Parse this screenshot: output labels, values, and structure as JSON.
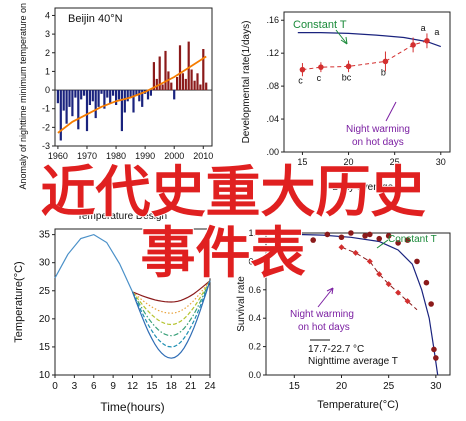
{
  "chart_data": [
    {
      "type": "bar",
      "panel": "a",
      "annotation": "Beijin 40°N",
      "ylabel": "Anomaly of nighttime minimum temperature on hot days",
      "xticks": [
        "1960",
        "1970",
        "1980",
        "1990",
        "2000",
        "2010"
      ],
      "yticks": [
        "4",
        "3",
        "2",
        "1",
        "0",
        "-1",
        "-2",
        "-3"
      ],
      "ylim": [
        -3,
        4.4
      ],
      "xlim": [
        1959,
        2013
      ],
      "bar_years": [
        1960,
        1961,
        1962,
        1963,
        1964,
        1965,
        1966,
        1967,
        1968,
        1969,
        1970,
        1971,
        1972,
        1973,
        1974,
        1975,
        1976,
        1977,
        1978,
        1979,
        1980,
        1981,
        1982,
        1983,
        1984,
        1985,
        1986,
        1987,
        1988,
        1989,
        1990,
        1991,
        1992,
        1993,
        1994,
        1995,
        1996,
        1997,
        1998,
        1999,
        2000,
        2001,
        2002,
        2003,
        2004,
        2005,
        2006,
        2007,
        2008,
        2009,
        2010,
        2011
      ],
      "values": [
        -0.7,
        -2.7,
        -1.1,
        -1.8,
        -0.9,
        -1.4,
        -0.4,
        -2.1,
        -0.5,
        -0.3,
        -2.2,
        -0.8,
        -0.6,
        -1.5,
        -0.9,
        -0.2,
        -1.0,
        -0.4,
        -0.7,
        -0.3,
        -0.8,
        -0.5,
        -2.2,
        -1.2,
        -0.6,
        -0.4,
        -1.2,
        -0.3,
        -0.6,
        -0.9,
        -0.2,
        -0.5,
        -0.3,
        1.5,
        0.6,
        1.8,
        0.3,
        2.1,
        1.0,
        0.4,
        -0.5,
        0.7,
        2.4,
        0.9,
        0.6,
        2.6,
        1.1,
        0.5,
        0.9,
        0.3,
        2.2,
        0.4
      ],
      "trend": {
        "x": [
          1960,
          1965,
          1970,
          1975,
          1980,
          1985,
          1990,
          1995,
          2000,
          2005,
          2011
        ],
        "y": [
          -2.3,
          -1.7,
          -1.3,
          -0.9,
          -0.6,
          -0.4,
          -0.1,
          0.3,
          0.7,
          1.2,
          1.8
        ]
      },
      "colors": {
        "positive": "#8b1a1a",
        "negative": "#1a237e",
        "trend": "#f57c00"
      }
    },
    {
      "type": "line",
      "panel": "b",
      "ylabel": "Developmental rate(1/days)",
      "xlabel": "Daily average T",
      "xticks": [
        "15",
        "20",
        "25",
        "30"
      ],
      "yticks": [
        ".16",
        ".12",
        ".08",
        ".04",
        ".00"
      ],
      "ylim": [
        0,
        0.17
      ],
      "xlim": [
        13,
        31
      ],
      "series": [
        {
          "name": "Constant T",
          "x": [
            14.5,
            17,
            20,
            23,
            26,
            28.5,
            30
          ],
          "y": [
            0.145,
            0.145,
            0.144,
            0.142,
            0.139,
            0.134,
            0.128
          ],
          "color": "#1a237e"
        },
        {
          "name": "Night warming on hot days",
          "x": [
            15,
            17,
            20,
            24,
            27,
            28.5
          ],
          "y": [
            0.1,
            0.103,
            0.104,
            0.11,
            0.13,
            0.135
          ],
          "err": [
            0.008,
            0.006,
            0.007,
            0.012,
            0.009,
            0.009
          ],
          "color": "#d32f2f"
        }
      ],
      "point_labels": [
        "c",
        "c",
        "bc",
        "b",
        "a",
        "a"
      ]
    },
    {
      "type": "line",
      "panel": "c",
      "title": "Temperature Design",
      "ylabel": "Temperature(°C)",
      "xlabel": "Time(hours)",
      "xticks": [
        "0",
        "3",
        "6",
        "9",
        "12",
        "15",
        "18",
        "21",
        "24"
      ],
      "yticks": [
        "35",
        "30",
        "25",
        "20",
        "15",
        "10"
      ],
      "xlim": [
        0,
        24
      ],
      "ylim": [
        10,
        36
      ],
      "day_curve": {
        "x": [
          0,
          2,
          4,
          6,
          8,
          10,
          12
        ],
        "y": [
          27.3,
          31.5,
          34.3,
          35,
          33.6,
          29.8,
          24.8
        ]
      },
      "night_curves": [
        {
          "min": 23.0,
          "color": "#8b1a1a",
          "style": "solid"
        },
        {
          "min": 21.0,
          "color": "#e8a33d",
          "style": "dotted"
        },
        {
          "min": 19.0,
          "color": "#b5c430",
          "style": "dashed"
        },
        {
          "min": 17.0,
          "color": "#3aa17a",
          "style": "dashdot"
        },
        {
          "min": 15.0,
          "color": "#1e8fb3",
          "style": "dashed"
        },
        {
          "min": 13.0,
          "color": "#2f6db5",
          "style": "solid"
        }
      ],
      "night_end": 26.8
    },
    {
      "type": "scatter",
      "panel": "d",
      "ylabel": "Survival rate",
      "xlabel": "Temperature(°C)",
      "xticks": [
        "15",
        "20",
        "25",
        "30"
      ],
      "yticks": [
        "1.0",
        "0.8",
        "0.6",
        "0.4",
        "0.2",
        "0.0"
      ],
      "xlim": [
        12,
        31.5
      ],
      "ylim": [
        0,
        1.0
      ],
      "series": [
        {
          "name": "Constant T",
          "x": [
            17,
            18.5,
            20,
            21,
            22.5,
            23,
            24,
            25,
            26,
            27,
            28,
            29,
            29.5,
            29.8,
            30
          ],
          "y": [
            0.95,
            0.99,
            0.97,
            1.0,
            0.98,
            0.99,
            0.96,
            0.98,
            0.93,
            0.95,
            0.8,
            0.65,
            0.5,
            0.18,
            0.12
          ],
          "color": "#8b1a1a"
        },
        {
          "name": "Night warming on hot days",
          "x": [
            20,
            21.5,
            23,
            24,
            25,
            26,
            27
          ],
          "y": [
            0.9,
            0.86,
            0.8,
            0.71,
            0.64,
            0.58,
            0.52
          ],
          "color": "#d32f2f"
        }
      ],
      "fit": {
        "x": [
          12,
          15,
          18,
          21,
          24,
          26,
          27.5,
          28.5,
          29.3,
          29.8,
          30.2
        ],
        "y": [
          0.99,
          0.99,
          0.985,
          0.97,
          0.94,
          0.88,
          0.78,
          0.6,
          0.4,
          0.18,
          0.0
        ],
        "color": "#1a237e"
      },
      "annotations": [
        "17.7-22.7 °C",
        "Nighttime average T"
      ]
    }
  ],
  "overlay": {
    "line1": "近代史重大历史",
    "line2": "事件表"
  },
  "labels": {
    "constant_t": "Constant T",
    "night_warming_1": "Night warming",
    "night_warming_2": "on hot days",
    "beijin": "Beijin 40°N",
    "temp_design": "Temperature Design",
    "range_note": "17.7-22.7 °C",
    "night_avg": "Nighttime average T"
  }
}
